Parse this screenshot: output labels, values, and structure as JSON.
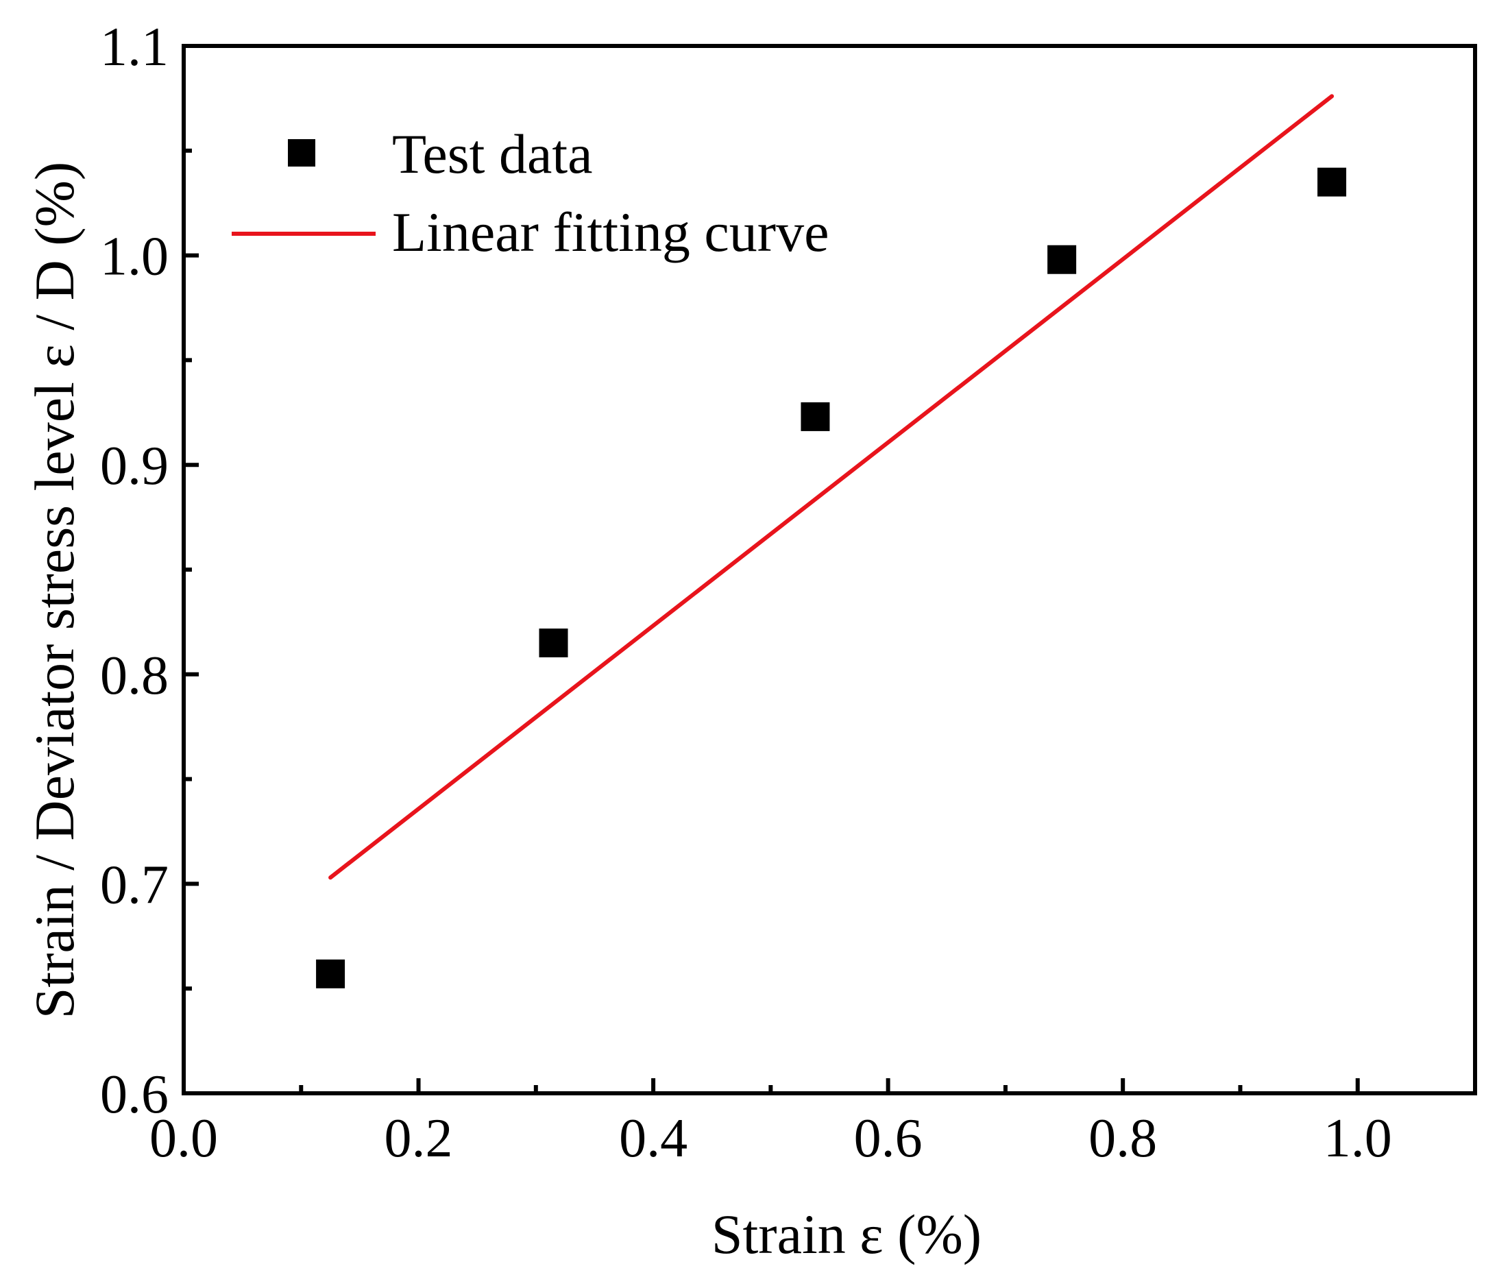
{
  "chart_data": {
    "type": "scatter",
    "title": "",
    "xlabel": "Strain ε (%)",
    "ylabel": "Strain / Deviator stress level  ε / D (%)",
    "xlim": [
      0.0,
      1.1
    ],
    "ylim": [
      0.6,
      1.1
    ],
    "x_ticks": [
      0.0,
      0.2,
      0.4,
      0.6,
      0.8,
      1.0
    ],
    "x_tick_labels": [
      "0.0",
      "0.2",
      "0.4",
      "0.6",
      "0.8",
      "1.0"
    ],
    "y_ticks": [
      0.6,
      0.7,
      0.8,
      0.9,
      1.0,
      1.1
    ],
    "y_tick_labels": [
      "0.6",
      "0.7",
      "0.8",
      "0.9",
      "1.0",
      "1.1"
    ],
    "x_minor_step": 0.1,
    "y_minor_step": 0.05,
    "grid": false,
    "legend_position": "top-left",
    "series": [
      {
        "name": "Test data",
        "kind": "scatter",
        "marker": "square",
        "color": "#000000",
        "x": [
          0.125,
          0.315,
          0.538,
          0.748,
          0.978
        ],
        "y": [
          0.657,
          0.815,
          0.923,
          0.998,
          1.035
        ]
      },
      {
        "name": "Linear fitting curve",
        "kind": "line",
        "color": "#e8141c",
        "x": [
          0.125,
          0.978
        ],
        "y": [
          0.703,
          1.076
        ]
      }
    ]
  }
}
